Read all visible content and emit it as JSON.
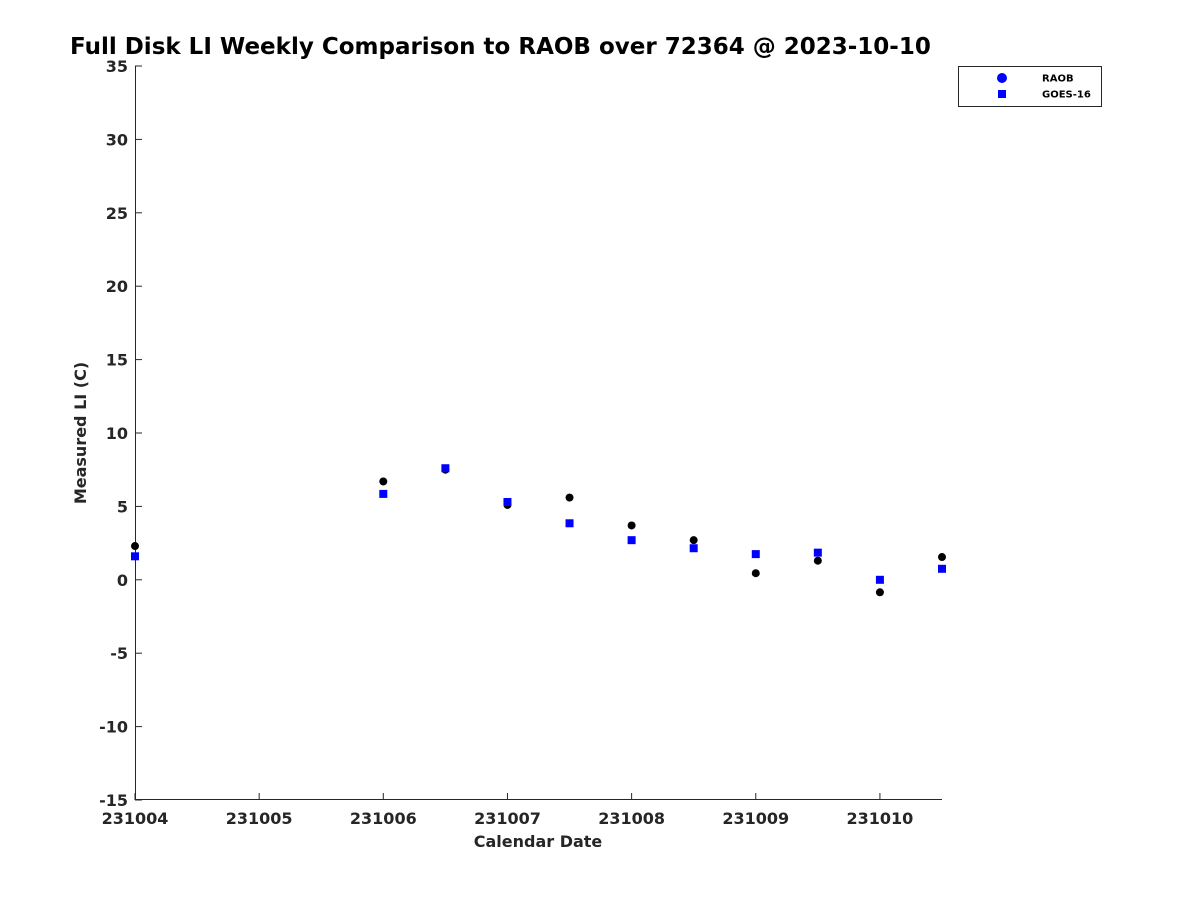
{
  "chart_data": {
    "type": "scatter",
    "title": "Full Disk LI Weekly Comparison to RAOB over 72364 @ 2023-10-10",
    "xlabel": "Calendar Date",
    "ylabel": "Measured LI (C)",
    "xlim": [
      "2023-10-04",
      "2023-10-10T12:00"
    ],
    "ylim": [
      -15,
      35
    ],
    "x_tick_labels": [
      "231004",
      "231005",
      "231006",
      "231007",
      "231008",
      "231009",
      "231010"
    ],
    "x_ticks": [
      "2023-10-04",
      "2023-10-05",
      "2023-10-06",
      "2023-10-07",
      "2023-10-08",
      "2023-10-09",
      "2023-10-10"
    ],
    "y_ticks": [
      35,
      30,
      25,
      20,
      15,
      10,
      5,
      0,
      -5,
      -10,
      -15
    ],
    "grid": false,
    "legend_position": "top-right",
    "series": [
      {
        "name": "RAOB",
        "marker": "circle",
        "color": "#000000",
        "legend_color": "#0000ff",
        "points": [
          {
            "x": "2023-10-04T00:00",
            "y": 2.3
          },
          {
            "x": "2023-10-06T00:00",
            "y": 6.7
          },
          {
            "x": "2023-10-06T12:00",
            "y": 7.5
          },
          {
            "x": "2023-10-07T00:00",
            "y": 5.1
          },
          {
            "x": "2023-10-07T12:00",
            "y": 5.6
          },
          {
            "x": "2023-10-08T00:00",
            "y": 3.7
          },
          {
            "x": "2023-10-08T12:00",
            "y": 2.7
          },
          {
            "x": "2023-10-09T00:00",
            "y": 0.45
          },
          {
            "x": "2023-10-09T12:00",
            "y": 1.3
          },
          {
            "x": "2023-10-10T00:00",
            "y": -0.85
          },
          {
            "x": "2023-10-10T12:00",
            "y": 1.55
          }
        ]
      },
      {
        "name": "GOES-16",
        "marker": "square",
        "color": "#0000ff",
        "legend_color": "#0000ff",
        "points": [
          {
            "x": "2023-10-04T00:00",
            "y": 1.6
          },
          {
            "x": "2023-10-06T00:00",
            "y": 5.85
          },
          {
            "x": "2023-10-06T12:00",
            "y": 7.6
          },
          {
            "x": "2023-10-07T00:00",
            "y": 5.3
          },
          {
            "x": "2023-10-07T12:00",
            "y": 3.85
          },
          {
            "x": "2023-10-08T00:00",
            "y": 2.7
          },
          {
            "x": "2023-10-08T12:00",
            "y": 2.15
          },
          {
            "x": "2023-10-09T00:00",
            "y": 1.75
          },
          {
            "x": "2023-10-09T12:00",
            "y": 1.85
          },
          {
            "x": "2023-10-10T00:00",
            "y": 0.0
          },
          {
            "x": "2023-10-10T12:00",
            "y": 0.75
          }
        ]
      }
    ]
  }
}
